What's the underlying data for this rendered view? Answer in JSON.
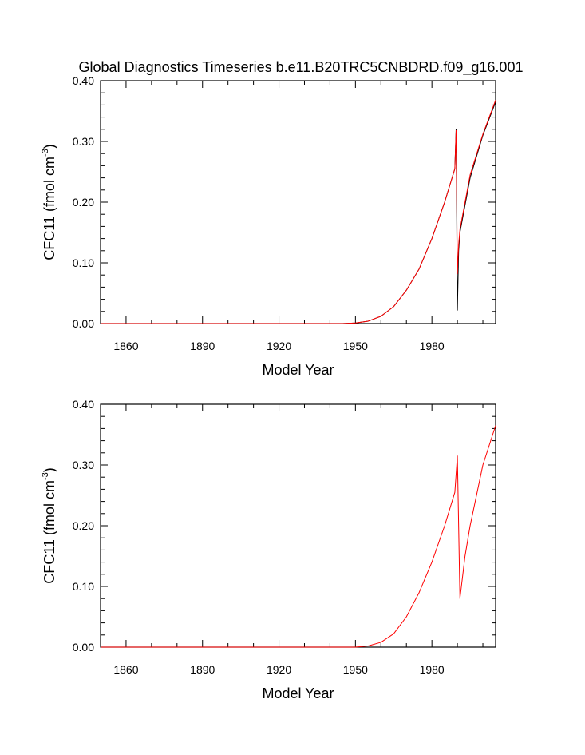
{
  "title": "Global Diagnostics Timeseries b.e11.B20TRC5CNBDRD.f09_g16.001",
  "chart_data": [
    {
      "type": "line",
      "xlabel": "Model Year",
      "ylabel_main": "CFC11 (fmol cm",
      "ylabel_sup": "-3",
      "ylabel_close": ")",
      "xlim": [
        1850,
        2005
      ],
      "ylim": [
        0,
        0.4
      ],
      "xticks": [
        1860,
        1890,
        1920,
        1950,
        1980
      ],
      "xtick_labels": [
        "1860",
        "1890",
        "1920",
        "1950",
        "1980"
      ],
      "yticks": [
        0,
        0.1,
        0.2,
        0.3,
        0.4
      ],
      "ytick_labels": [
        "0.00",
        "0.10",
        "0.20",
        "0.30",
        "0.40"
      ],
      "grid": false,
      "series": [
        {
          "color": "#000000",
          "x": [
            1850,
            1945,
            1950,
            1955,
            1960,
            1965,
            1970,
            1975,
            1980,
            1985,
            1989,
            1989.5,
            1990,
            1990.5,
            1991,
            1995,
            2000,
            2005
          ],
          "y": [
            0,
            0,
            0.001,
            0.004,
            0.012,
            0.028,
            0.055,
            0.09,
            0.14,
            0.2,
            0.255,
            0.32,
            0.022,
            0.12,
            0.15,
            0.24,
            0.31,
            0.365
          ]
        },
        {
          "color": "#ff0000",
          "x": [
            1850,
            1945,
            1950,
            1955,
            1960,
            1965,
            1970,
            1975,
            1980,
            1985,
            1989,
            1989.5,
            1990,
            1990.5,
            1991,
            1995,
            2000,
            2005
          ],
          "y": [
            0,
            0,
            0.001,
            0.004,
            0.012,
            0.028,
            0.055,
            0.09,
            0.14,
            0.2,
            0.255,
            0.318,
            0.082,
            0.13,
            0.155,
            0.245,
            0.312,
            0.368
          ]
        }
      ]
    },
    {
      "type": "line",
      "xlabel": "Model Year",
      "ylabel_main": "CFC11 (fmol cm",
      "ylabel_sup": "-3",
      "ylabel_close": ")",
      "xlim": [
        1850,
        2005
      ],
      "ylim": [
        0,
        0.4
      ],
      "xticks": [
        1860,
        1890,
        1920,
        1950,
        1980
      ],
      "xtick_labels": [
        "1860",
        "1890",
        "1920",
        "1950",
        "1980"
      ],
      "yticks": [
        0,
        0.1,
        0.2,
        0.3,
        0.4
      ],
      "ytick_labels": [
        "0.00",
        "0.10",
        "0.20",
        "0.30",
        "0.40"
      ],
      "grid": false,
      "series": [
        {
          "color": "#ff0000",
          "x": [
            1850,
            1950,
            1955,
            1960,
            1965,
            1970,
            1975,
            1980,
            1985,
            1989,
            1990,
            1991,
            1993,
            1995,
            2000,
            2005
          ],
          "y": [
            0,
            0,
            0.002,
            0.008,
            0.022,
            0.05,
            0.09,
            0.14,
            0.2,
            0.255,
            0.315,
            0.08,
            0.15,
            0.2,
            0.3,
            0.365
          ]
        }
      ]
    }
  ]
}
